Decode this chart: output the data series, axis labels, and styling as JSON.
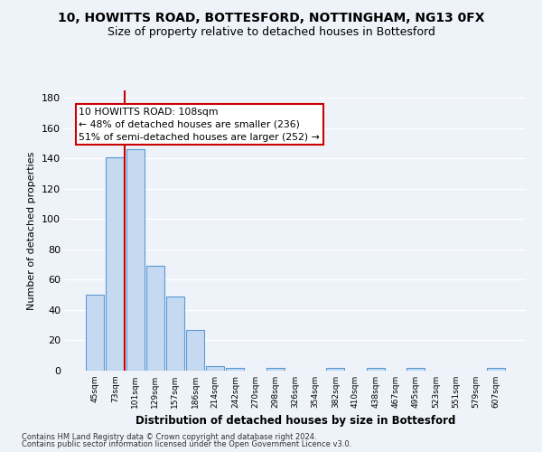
{
  "title": "10, HOWITTS ROAD, BOTTESFORD, NOTTINGHAM, NG13 0FX",
  "subtitle": "Size of property relative to detached houses in Bottesford",
  "xlabel": "Distribution of detached houses by size in Bottesford",
  "ylabel": "Number of detached properties",
  "categories": [
    "45sqm",
    "73sqm",
    "101sqm",
    "129sqm",
    "157sqm",
    "186sqm",
    "214sqm",
    "242sqm",
    "270sqm",
    "298sqm",
    "326sqm",
    "354sqm",
    "382sqm",
    "410sqm",
    "438sqm",
    "467sqm",
    "495sqm",
    "523sqm",
    "551sqm",
    "579sqm",
    "607sqm"
  ],
  "values": [
    50,
    141,
    146,
    69,
    49,
    27,
    3,
    2,
    0,
    2,
    0,
    0,
    2,
    0,
    2,
    0,
    2,
    0,
    0,
    0,
    2
  ],
  "bar_color": "#c5d9f0",
  "bar_edge_color": "#5b9bd5",
  "red_line_x": 1.5,
  "annotation_lines": [
    "10 HOWITTS ROAD: 108sqm",
    "← 48% of detached houses are smaller (236)",
    "51% of semi-detached houses are larger (252) →"
  ],
  "annotation_box_color": "#ffffff",
  "annotation_box_edge_color": "#cc0000",
  "ylim": [
    0,
    185
  ],
  "yticks": [
    0,
    20,
    40,
    60,
    80,
    100,
    120,
    140,
    160,
    180
  ],
  "footer1": "Contains HM Land Registry data © Crown copyright and database right 2024.",
  "footer2": "Contains public sector information licensed under the Open Government Licence v3.0.",
  "bg_color": "#eef2f9",
  "plot_bg_color": "#eef2f9",
  "grid_color": "#ffffff",
  "title_fontsize": 10,
  "subtitle_fontsize": 9,
  "ann_fontsize": 7.8
}
